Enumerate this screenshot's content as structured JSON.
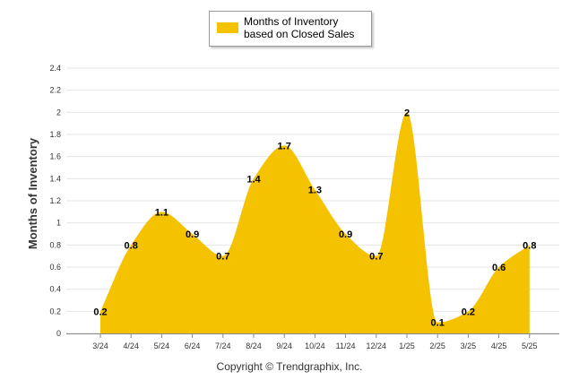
{
  "legend": {
    "label": "Months of Inventory based on Closed Sales"
  },
  "footer": {
    "text": "Copyright © Trendgraphix, Inc."
  },
  "colors": {
    "area": "#f5c200",
    "grid": "#e6e6e6",
    "axis": "#888888",
    "label": "#000000",
    "tick": "#333333"
  },
  "chart_data": {
    "type": "area",
    "title": "",
    "xlabel": "",
    "ylabel": "Months of Inventory",
    "categories": [
      "3/24",
      "4/24",
      "5/24",
      "6/24",
      "7/24",
      "8/24",
      "9/24",
      "10/24",
      "11/24",
      "12/24",
      "1/25",
      "2/25",
      "3/25",
      "4/25",
      "5/25"
    ],
    "series": [
      {
        "name": "Months of Inventory based on Closed Sales",
        "values": [
          0.2,
          0.8,
          1.1,
          0.9,
          0.7,
          1.4,
          1.7,
          1.3,
          0.9,
          0.7,
          2,
          0.1,
          0.2,
          0.6,
          0.8
        ]
      }
    ],
    "ylim": [
      0,
      2.4
    ],
    "yticks": [
      "0",
      "0.2",
      "0.4",
      "0.6",
      "0.8",
      "1",
      "1.2",
      "1.4",
      "1.6",
      "1.8",
      "2",
      "2.2",
      "2.4"
    ],
    "grid": true,
    "legend_position": "top-center"
  }
}
